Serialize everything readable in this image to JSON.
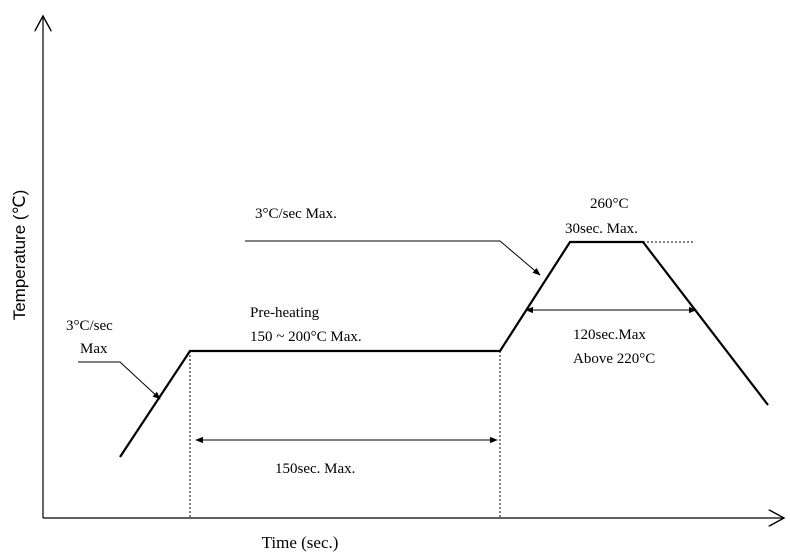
{
  "axes": {
    "y_label": "Temperature (℃)",
    "x_label": "Time (sec.)"
  },
  "annotations": {
    "ramp_up": [
      "3°C/sec",
      "Max"
    ],
    "preheat": [
      "Pre-heating",
      "150 ~ 200°C Max."
    ],
    "preheat_time": "150sec. Max.",
    "ramp_to_peak": "3°C/sec Max.",
    "peak": [
      "260°C",
      "30sec. Max."
    ],
    "reflow": [
      "120sec.Max",
      "Above 220°C"
    ]
  }
}
